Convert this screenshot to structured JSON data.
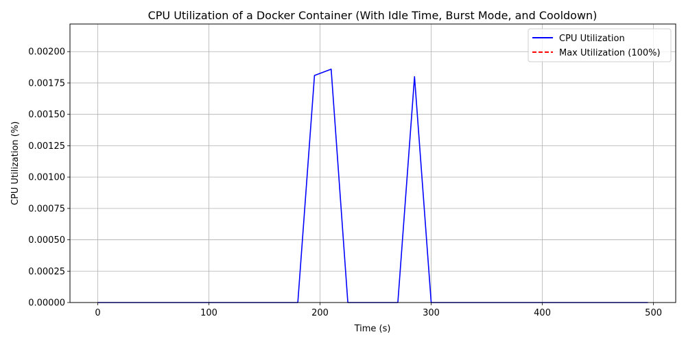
{
  "chart_data": {
    "type": "line",
    "title": "CPU Utilization of a Docker Container (With Idle Time, Burst Mode, and Cooldown)",
    "xlabel": "Time (s)",
    "ylabel": "CPU Utilization (%)",
    "xlim": [
      -25,
      520
    ],
    "ylim": [
      0,
      0.00222
    ],
    "xticks": [
      0,
      100,
      200,
      300,
      400,
      500
    ],
    "xtick_labels": [
      "0",
      "100",
      "200",
      "300",
      "400",
      "500"
    ],
    "yticks": [
      0,
      0.00025,
      0.0005,
      0.00075,
      0.001,
      0.00125,
      0.0015,
      0.00175,
      0.002
    ],
    "ytick_labels": [
      "0.00000",
      "0.00025",
      "0.00050",
      "0.00075",
      "0.00100",
      "0.00125",
      "0.00150",
      "0.00175",
      "0.00200"
    ],
    "grid": true,
    "legend_position": "top-right",
    "series": [
      {
        "name": "CPU Utilization",
        "color": "#0000ff",
        "style": "solid",
        "x": [
          0,
          180,
          195,
          210,
          225,
          270,
          285,
          300,
          495
        ],
        "y": [
          0,
          0,
          0.00181,
          0.00186,
          0,
          0,
          0.0018,
          0,
          0
        ]
      },
      {
        "name": "Max Utilization (100%)",
        "color": "#ff0000",
        "style": "dashed",
        "x": [],
        "y": []
      }
    ]
  }
}
